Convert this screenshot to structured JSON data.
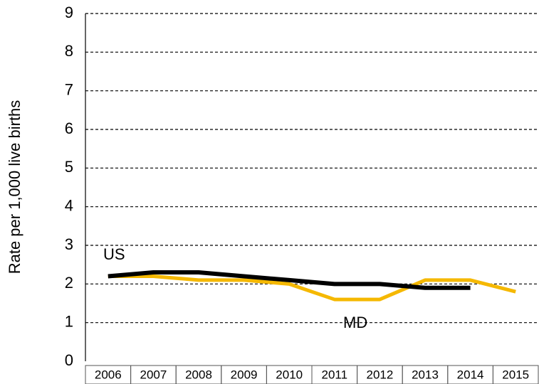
{
  "chart_data": {
    "type": "line",
    "y_label": "Rate per 1,000 live births",
    "categories": [
      "2006",
      "2007",
      "2008",
      "2009",
      "2010",
      "2011",
      "2012",
      "2013",
      "2014",
      "2015"
    ],
    "series": [
      {
        "name": "MD",
        "color": "#f5b800",
        "values": [
          2.2,
          2.2,
          2.1,
          2.1,
          2.0,
          1.6,
          1.6,
          2.1,
          2.1,
          1.8
        ]
      },
      {
        "name": "US",
        "color": "#000000",
        "values": [
          2.2,
          2.3,
          2.3,
          2.2,
          2.1,
          2.0,
          2.0,
          1.9,
          1.9,
          null
        ]
      }
    ],
    "ylim": [
      0,
      9
    ],
    "yticks": [
      0,
      1,
      2,
      3,
      4,
      5,
      6,
      7,
      8,
      9
    ],
    "grid": true
  }
}
